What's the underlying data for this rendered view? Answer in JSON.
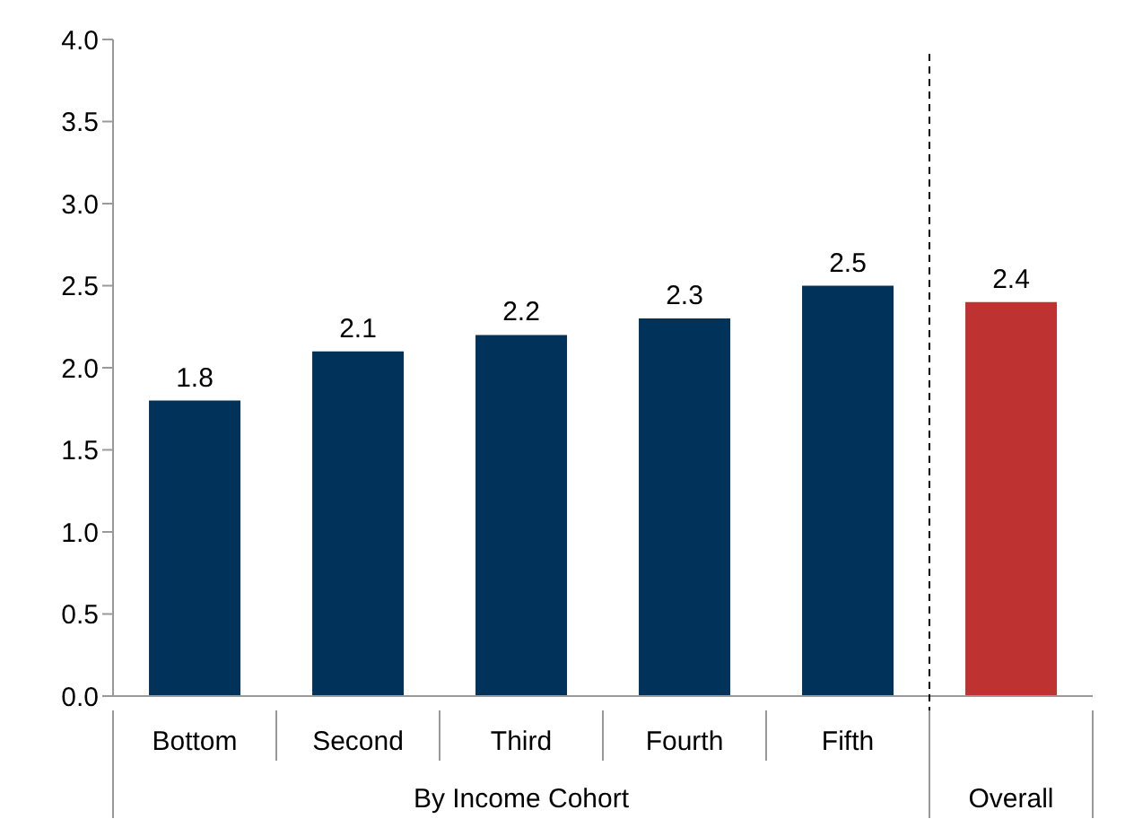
{
  "chart_data": {
    "type": "bar",
    "categories": [
      "Bottom",
      "Second",
      "Third",
      "Fourth",
      "Fifth",
      null
    ],
    "values": [
      1.8,
      2.1,
      2.2,
      2.3,
      2.5,
      2.4
    ],
    "colors": [
      "#00325a",
      "#00325a",
      "#00325a",
      "#00325a",
      "#00325a",
      "#be3232"
    ],
    "ylim": [
      0,
      4
    ],
    "yticks": [
      {
        "value": 0,
        "label": "0.0"
      },
      {
        "value": 0.5,
        "label": "0.5"
      },
      {
        "value": 1,
        "label": "1.0"
      },
      {
        "value": 1.5,
        "label": "1.5"
      },
      {
        "value": 2,
        "label": "2.0"
      },
      {
        "value": 2.5,
        "label": "2.5"
      },
      {
        "value": 3,
        "label": "3.0"
      },
      {
        "value": 3.5,
        "label": "3.5"
      },
      {
        "value": 4,
        "label": "4.0"
      }
    ],
    "data_labels": true,
    "annotations": [
      "By Income Cohort",
      "Overall"
    ]
  }
}
